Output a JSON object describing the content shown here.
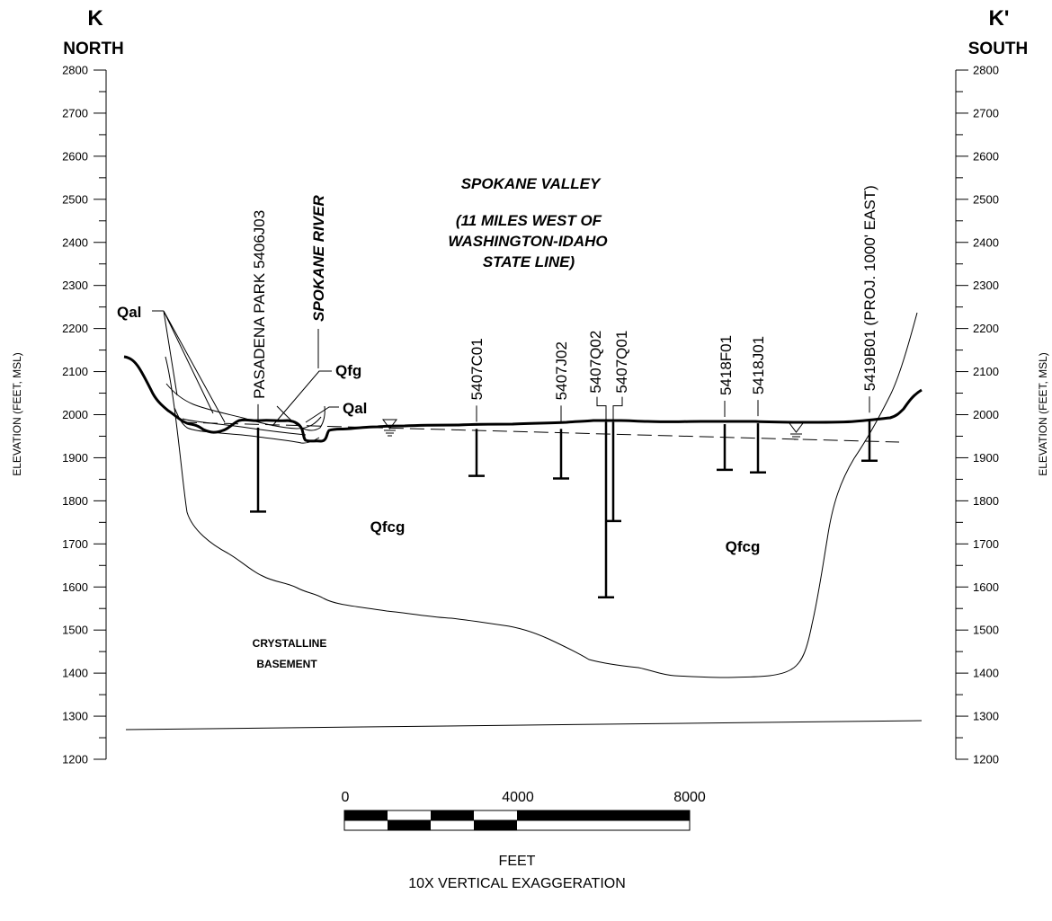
{
  "ends": {
    "left_letter": "K",
    "left_direction": "NORTH",
    "right_letter": "K'",
    "right_direction": "SOUTH"
  },
  "axis": {
    "title": "ELEVATION (FEET, MSL)",
    "ticks": [
      2800,
      2700,
      2600,
      2500,
      2400,
      2300,
      2200,
      2100,
      2000,
      1900,
      1800,
      1700,
      1600,
      1500,
      1400,
      1300,
      1200
    ],
    "range": [
      1200,
      2800
    ]
  },
  "title": {
    "line1": "SPOKANE VALLEY",
    "line2": "(11 MILES WEST OF",
    "line3": "WASHINGTON-IDAHO",
    "line4": "STATE LINE)"
  },
  "river_label": "SPOKANE RIVER",
  "wells": [
    {
      "label": "PASADENA PARK 5406J03",
      "top": 1970,
      "bottom": 1775
    },
    {
      "label": "5407C01",
      "top": 1967,
      "bottom": 1858
    },
    {
      "label": "5407J02",
      "top": 1967,
      "bottom": 1852
    },
    {
      "label": "5407Q02",
      "top": 1983,
      "bottom": 1576
    },
    {
      "label": "5407Q01",
      "top": 1983,
      "bottom": 1753
    },
    {
      "label": "5418F01",
      "top": 1978,
      "bottom": 1872
    },
    {
      "label": "5418J01",
      "top": 1980,
      "bottom": 1866
    },
    {
      "label": "5419B01 (PROJ. 1000' EAST)",
      "top": 1988,
      "bottom": 1893
    }
  ],
  "units": {
    "qal_left": "Qal",
    "qfg": "Qfg",
    "qal_right": "Qal",
    "qfcg_left": "Qfcg",
    "qfcg_right": "Qfcg",
    "basement_line1": "CRYSTALLINE",
    "basement_line2": "BASEMENT"
  },
  "scale_bar": {
    "labels": [
      "0",
      "4000",
      "8000"
    ],
    "units": "FEET",
    "note": "10X VERTICAL EXAGGERATION"
  }
}
